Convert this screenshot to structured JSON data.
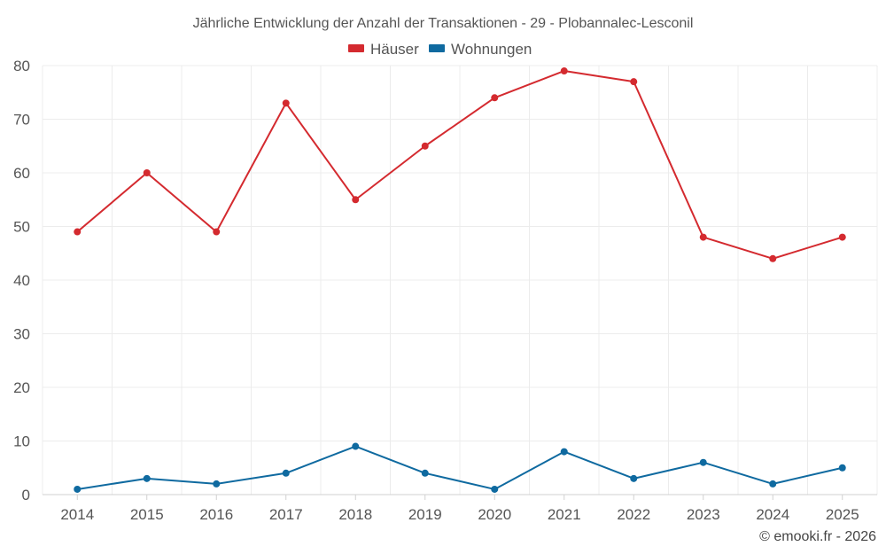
{
  "chart_data": {
    "type": "line",
    "title": "Jährliche Entwicklung der Anzahl der Transaktionen - 29 - Plobannalec-Lesconil",
    "categories": [
      "2014",
      "2015",
      "2016",
      "2017",
      "2018",
      "2019",
      "2020",
      "2021",
      "2022",
      "2023",
      "2024",
      "2025"
    ],
    "series": [
      {
        "name": "Häuser",
        "color": "#d42a2f",
        "values": [
          49,
          60,
          49,
          73,
          55,
          65,
          74,
          79,
          77,
          48,
          44,
          48
        ]
      },
      {
        "name": "Wohnungen",
        "color": "#0f6aa0",
        "values": [
          1,
          3,
          2,
          4,
          9,
          4,
          1,
          8,
          3,
          6,
          2,
          5
        ]
      }
    ],
    "xlabel": "",
    "ylabel": "",
    "ylim": [
      0,
      80
    ],
    "yticks": [
      0,
      10,
      20,
      30,
      40,
      50,
      60,
      70,
      80
    ],
    "grid": true,
    "legend": "top-center"
  },
  "credit": "© emooki.fr - 2026"
}
